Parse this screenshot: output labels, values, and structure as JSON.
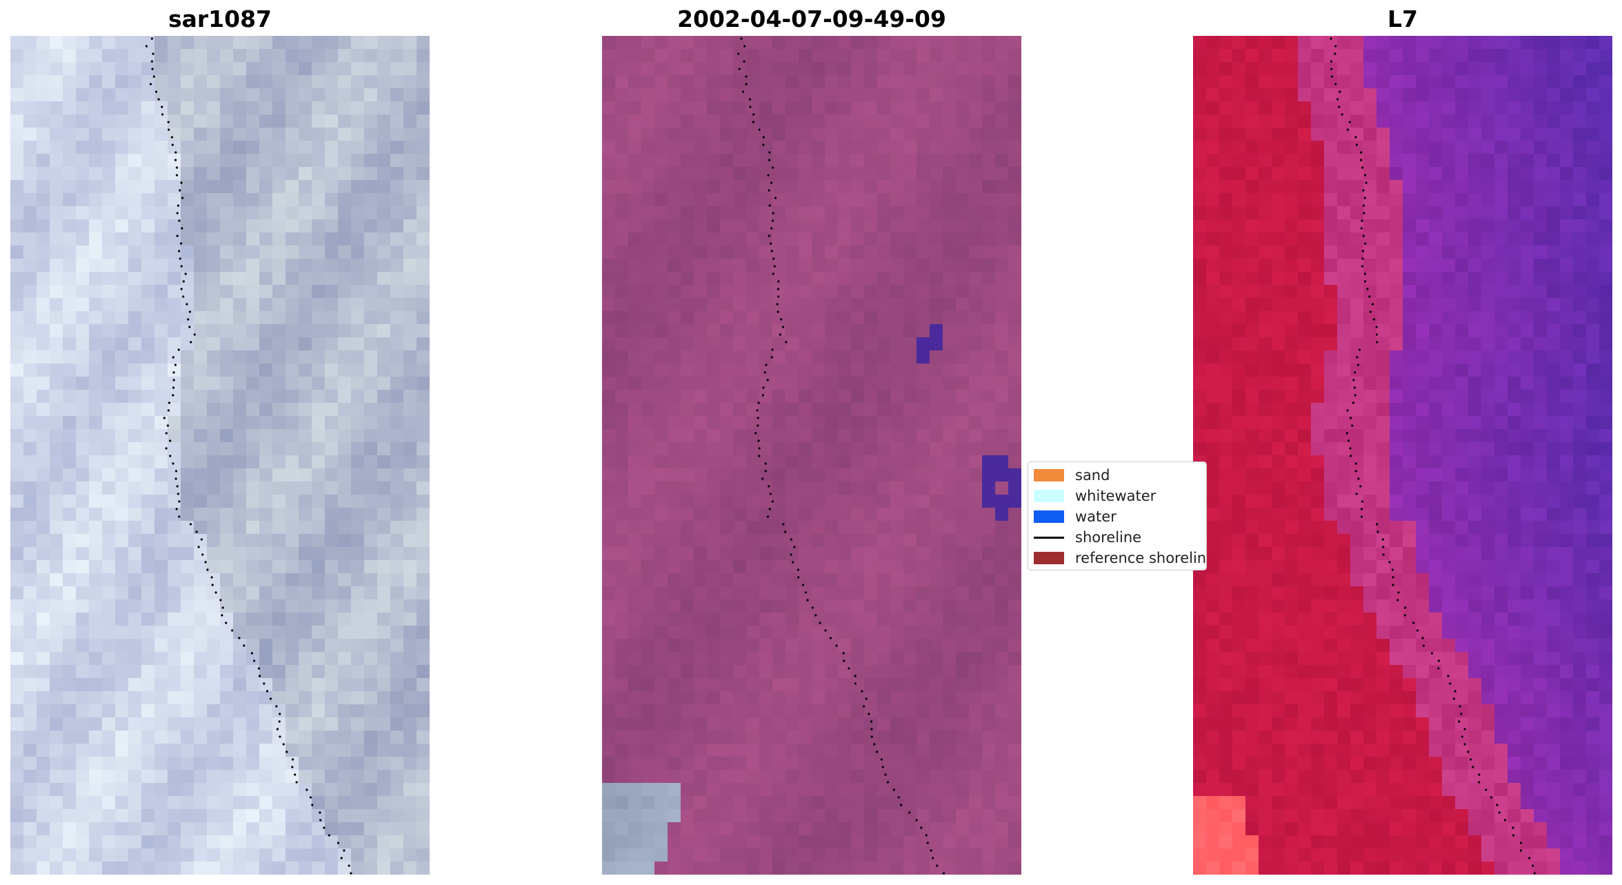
{
  "panels": [
    {
      "id": "left",
      "title": "sar1087",
      "palette": "rgb"
    },
    {
      "id": "center",
      "title": "2002-04-07-09-49-09",
      "palette": "classified"
    },
    {
      "id": "right",
      "title": "L7",
      "palette": "falsecolor"
    }
  ],
  "legend": {
    "items": [
      {
        "label": "sand",
        "color": "#f28a3c",
        "kind": "patch"
      },
      {
        "label": "whitewater",
        "color": "#ccffff",
        "kind": "patch"
      },
      {
        "label": "water",
        "color": "#0e5cf0",
        "kind": "patch"
      },
      {
        "label": "shoreline",
        "color": "#000000",
        "kind": "line"
      },
      {
        "label": "reference shoreline",
        "color": "#9c2e30",
        "kind": "patch"
      }
    ]
  },
  "colors": {
    "rgb_base": "#b7c2d6",
    "classified_base": "#9c4a80",
    "classified_water_patch": "#4b2a9c",
    "falsecolor_red": "#c71848",
    "falsecolor_purple": "#7a20a8",
    "falsecolor_sand": "#ff6b6b",
    "shoreline_dots": "#000000"
  }
}
